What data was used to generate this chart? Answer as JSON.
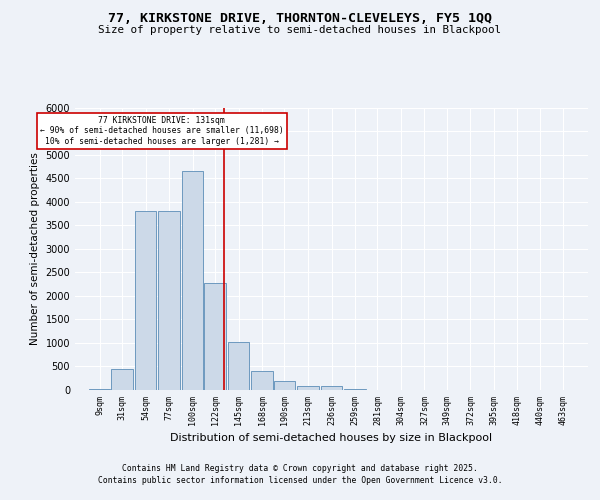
{
  "title": "77, KIRKSTONE DRIVE, THORNTON-CLEVELEYS, FY5 1QQ",
  "subtitle": "Size of property relative to semi-detached houses in Blackpool",
  "xlabel": "Distribution of semi-detached houses by size in Blackpool",
  "ylabel": "Number of semi-detached properties",
  "bar_labels": [
    "9sqm",
    "31sqm",
    "54sqm",
    "77sqm",
    "100sqm",
    "122sqm",
    "145sqm",
    "168sqm",
    "190sqm",
    "213sqm",
    "236sqm",
    "259sqm",
    "281sqm",
    "304sqm",
    "327sqm",
    "349sqm",
    "372sqm",
    "395sqm",
    "418sqm",
    "440sqm",
    "463sqm"
  ],
  "bar_values": [
    30,
    450,
    3800,
    3800,
    4650,
    2280,
    1010,
    400,
    200,
    75,
    75,
    20,
    5,
    5,
    5,
    0,
    0,
    0,
    0,
    0,
    0
  ],
  "bar_color": "#ccd9e8",
  "bar_edge_color": "#5b8db8",
  "property_line_x": 131,
  "property_line_label": "77 KIRKSTONE DRIVE: 131sqm",
  "annotation_smaller": "← 90% of semi-detached houses are smaller (11,698)",
  "annotation_larger": "10% of semi-detached houses are larger (1,281) →",
  "annotation_box_color": "#ffffff",
  "annotation_box_edge_color": "#cc0000",
  "vline_color": "#cc0000",
  "ylim_max": 6000,
  "yticks": [
    0,
    500,
    1000,
    1500,
    2000,
    2500,
    3000,
    3500,
    4000,
    4500,
    5000,
    5500,
    6000
  ],
  "bg_color": "#eef2f8",
  "plot_bg_color": "#eef2f8",
  "footer_line1": "Contains HM Land Registry data © Crown copyright and database right 2025.",
  "footer_line2": "Contains public sector information licensed under the Open Government Licence v3.0.",
  "grid_color": "#ffffff",
  "sqm_vals": [
    9,
    31,
    54,
    77,
    100,
    122,
    145,
    168,
    190,
    213,
    236,
    259,
    281,
    304,
    327,
    349,
    372,
    395,
    418,
    440,
    463
  ],
  "bin_width": 22
}
